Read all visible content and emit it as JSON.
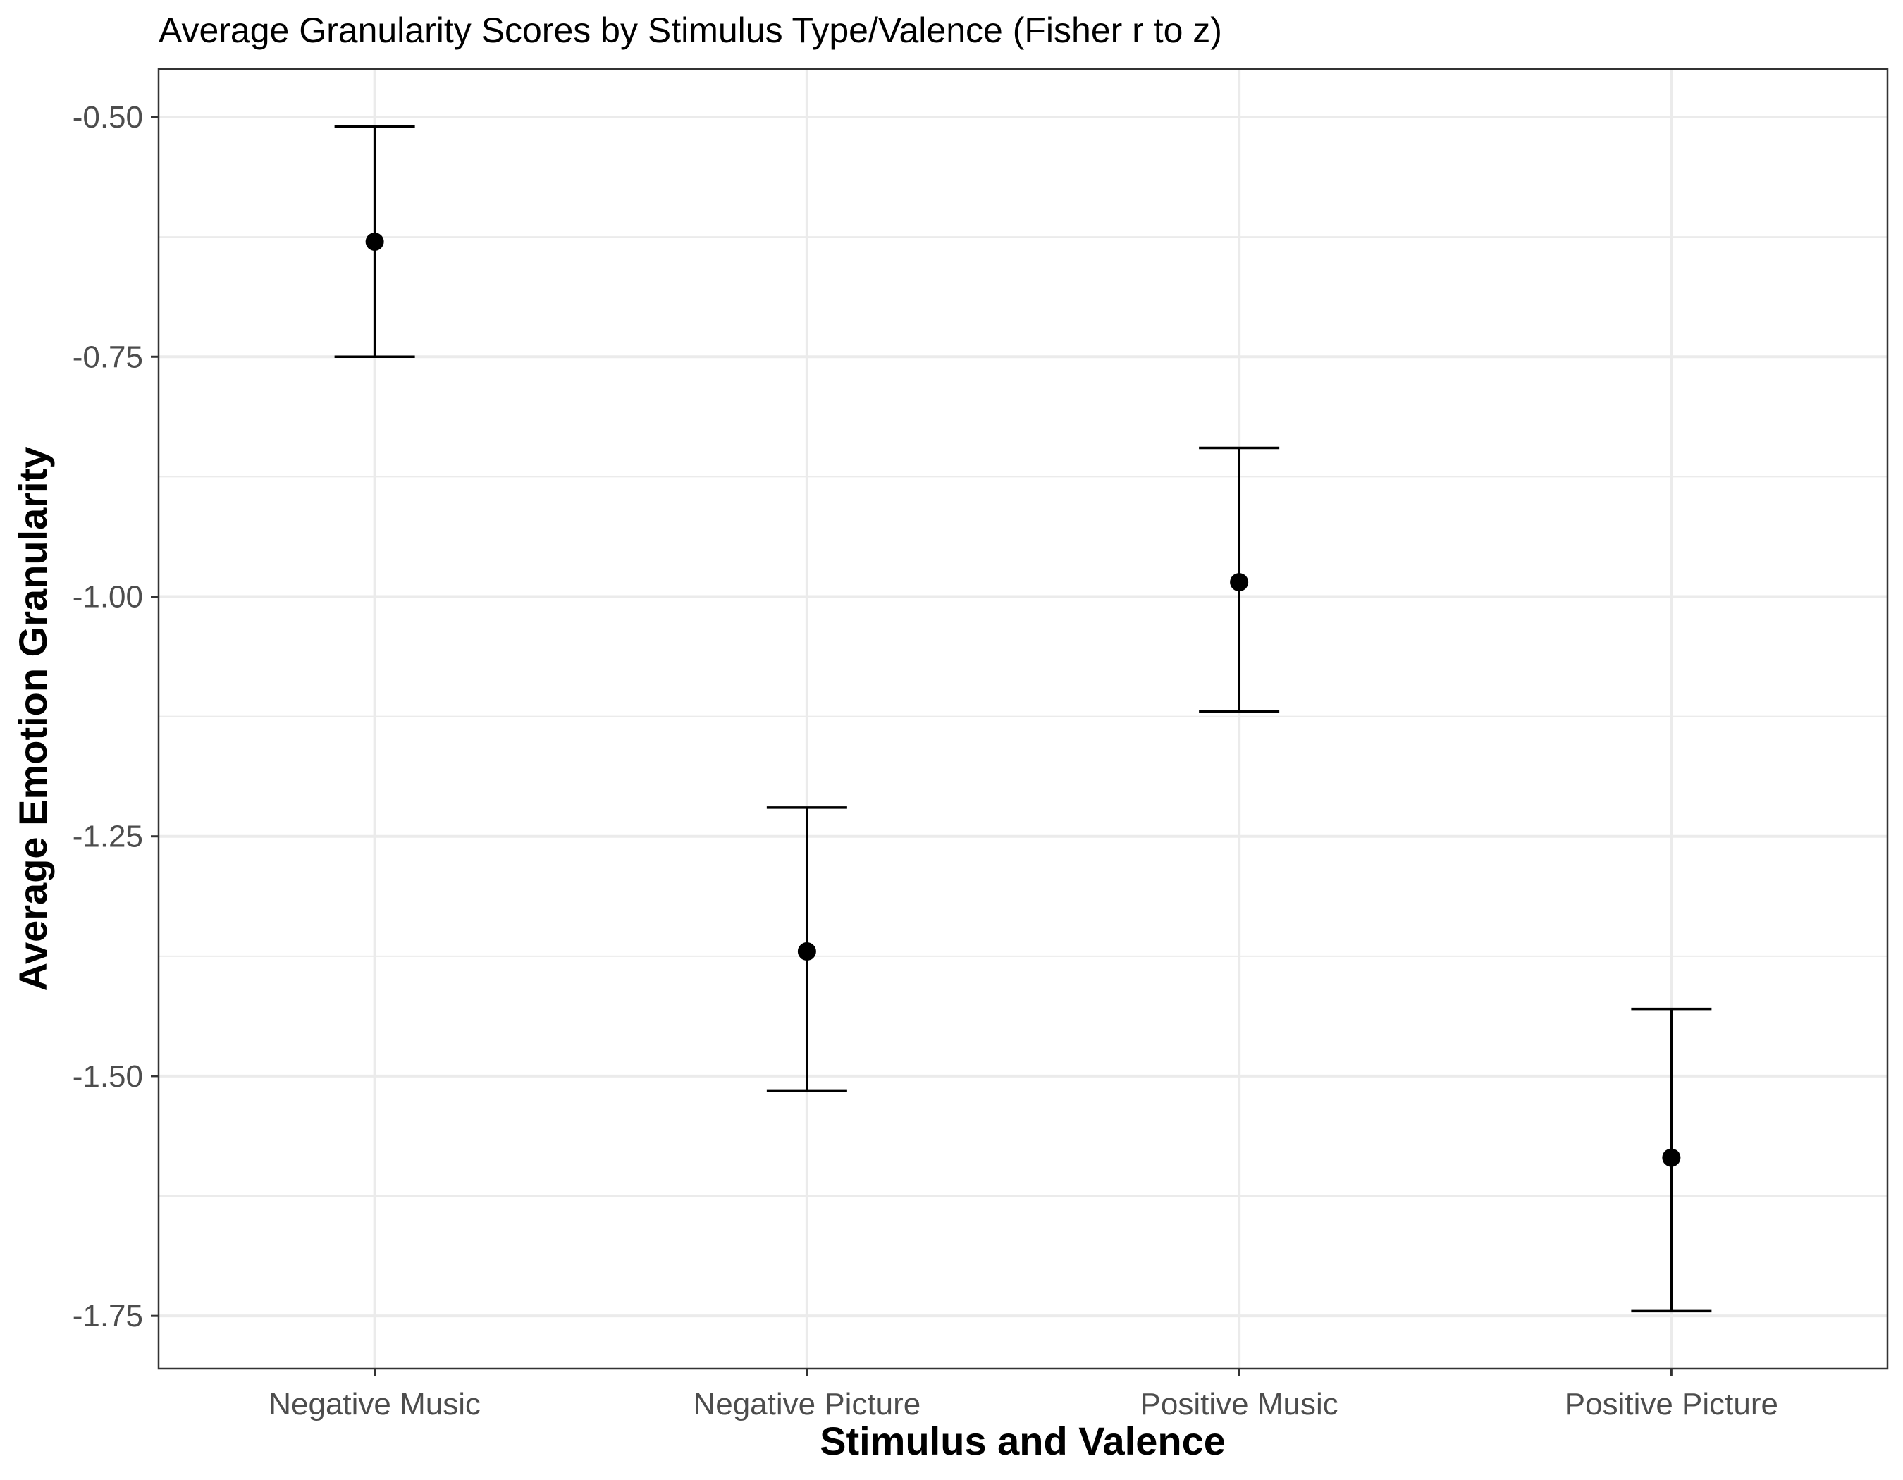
{
  "chart_data": {
    "type": "scatter",
    "title": "Average Granularity Scores by Stimulus Type/Valence (Fisher r to z)",
    "xlabel": "Stimulus and Valence",
    "ylabel": "Average Emotion Granularity",
    "categories": [
      "Negative Music",
      "Negative Picture",
      "Positive Music",
      "Positive Picture"
    ],
    "values": [
      -0.63,
      -1.37,
      -0.985,
      -1.585
    ],
    "error_upper": [
      -0.51,
      -1.22,
      -0.845,
      -1.43
    ],
    "error_lower": [
      -0.75,
      -1.515,
      -1.12,
      -1.745
    ],
    "ylim": [
      -1.805,
      -0.45
    ],
    "y_ticks": [
      -0.5,
      -0.75,
      -1.0,
      -1.25,
      -1.5,
      -1.75
    ],
    "y_tick_labels": [
      "-0.50",
      "-0.75",
      "-1.00",
      "-1.25",
      "-1.50",
      "-1.75"
    ],
    "y_minor_ticks": [
      -0.625,
      -0.875,
      -1.125,
      -1.375,
      -1.625
    ],
    "grid": true,
    "legend": "none",
    "colors": {
      "point": "#000000",
      "grid": "#ebebeb",
      "panel_border": "#333333"
    }
  }
}
